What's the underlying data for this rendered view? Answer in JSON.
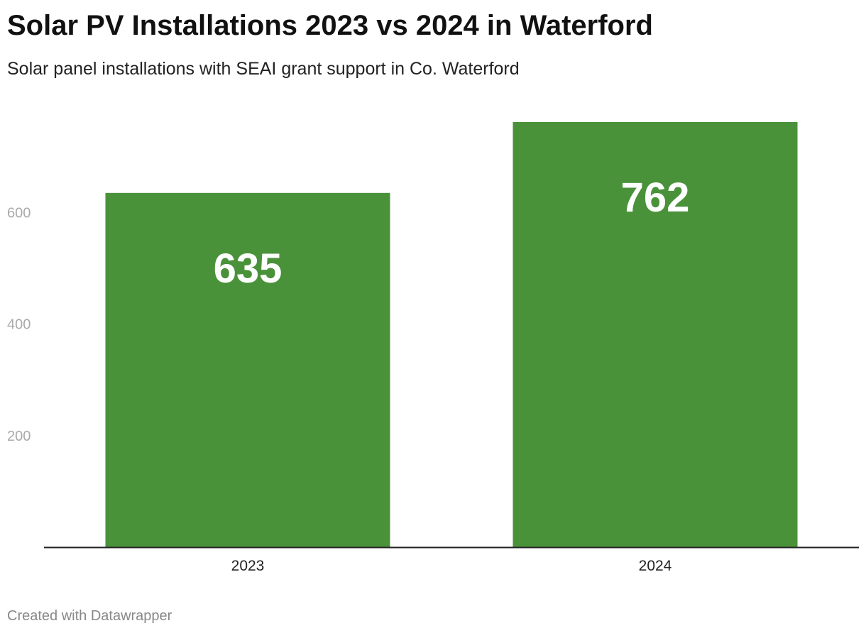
{
  "chart_data": {
    "type": "bar",
    "title": "Solar PV Installations 2023 vs 2024 in Waterford",
    "subtitle": "Solar panel installations with SEAI grant support in Co. Waterford",
    "categories": [
      "2023",
      "2024"
    ],
    "values": [
      635,
      762
    ],
    "value_labels": [
      "635",
      "762"
    ],
    "xlabel": "",
    "ylabel": "",
    "ylim": [
      0,
      762
    ],
    "yticks": [
      200,
      400,
      600
    ],
    "ytick_labels": [
      "200",
      "400",
      "600"
    ],
    "grid": false,
    "legend": "none",
    "colors": {
      "bar": "#4a923a",
      "value_label": "#ffffff",
      "tick": "#aaaaaa",
      "baseline": "#222222"
    }
  },
  "footer": {
    "credit": "Created with Datawrapper"
  }
}
